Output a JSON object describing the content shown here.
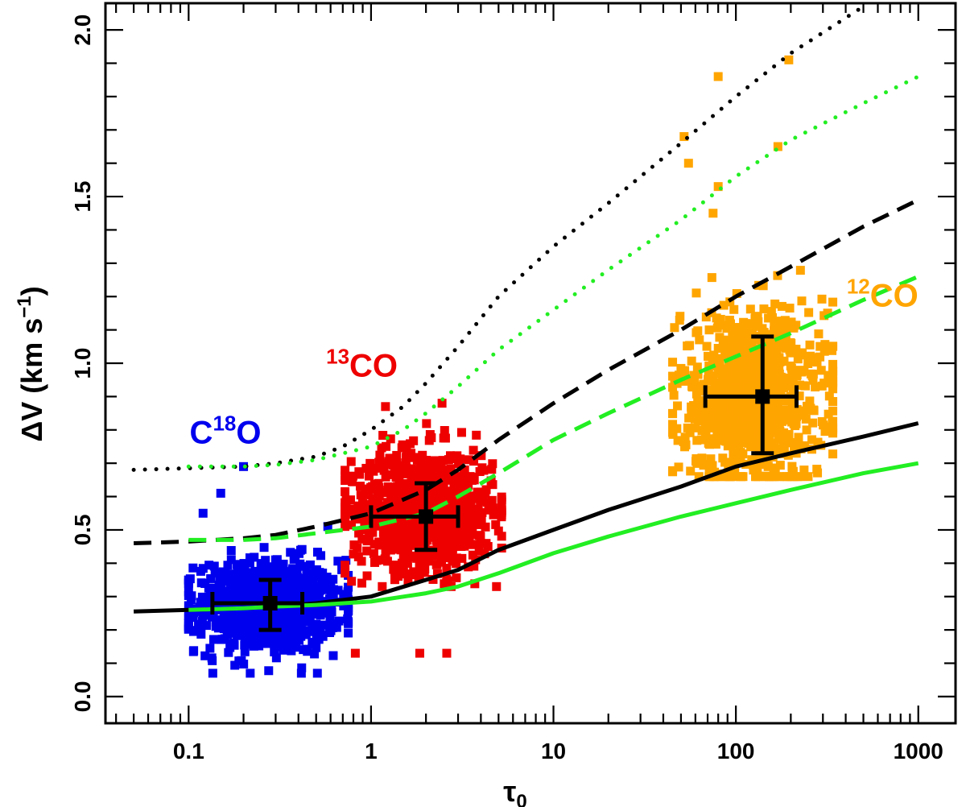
{
  "chart_data": {
    "type": "scatter",
    "title": "",
    "xlabel": "τ₀",
    "xlabel_symbol": "τ",
    "xlabel_sub": "0",
    "ylabel": "ΔV (km s⁻¹)",
    "ylabel_main": "ΔV (km s",
    "ylabel_sup": "−1",
    "ylabel_close": ")",
    "xscale": "log",
    "xlim": [
      0.035,
      1600
    ],
    "ylim": [
      -0.08,
      2.08
    ],
    "xticks": [
      0.1,
      1,
      10,
      100,
      1000
    ],
    "xtick_labels": [
      "0.1",
      "1",
      "10",
      "100",
      "1000"
    ],
    "yticks": [
      0.0,
      0.5,
      1.0,
      1.5,
      2.0
    ],
    "ytick_labels": [
      "0.0",
      "0.5",
      "1.0",
      "1.5",
      "2.0"
    ],
    "colors": {
      "c18o": "#0000ee",
      "13co": "#ee0000",
      "12co": "#ffa500",
      "model_black": "#000000",
      "model_green": "#22ee22"
    },
    "scatter_groups": [
      {
        "name": "C18O",
        "color_key": "c18o",
        "count": 900,
        "x_range": [
          0.1,
          0.75
        ],
        "y_center": 0.27,
        "y_spread": 0.07,
        "y_min": 0.07,
        "y_max": 0.62,
        "outliers": [
          [
            0.2,
            0.69
          ],
          [
            0.15,
            0.61
          ],
          [
            0.12,
            0.55
          ]
        ]
      },
      {
        "name": "13CO",
        "color_key": "13co",
        "count": 900,
        "x_range": [
          0.72,
          5.2
        ],
        "y_center": 0.56,
        "y_spread": 0.09,
        "y_min": 0.33,
        "y_max": 0.86,
        "outliers": [
          [
            0.82,
            0.13
          ],
          [
            1.85,
            0.13
          ],
          [
            2.6,
            0.13
          ],
          [
            2.45,
            0.88
          ],
          [
            1.2,
            0.87
          ]
        ]
      },
      {
        "name": "12CO",
        "color_key": "12co",
        "count": 1000,
        "x_range": [
          45,
          340
        ],
        "y_center": 0.9,
        "y_spread": 0.13,
        "y_min": 0.66,
        "y_max": 1.42,
        "outliers": [
          [
            80,
            1.86
          ],
          [
            195,
            1.91
          ],
          [
            52,
            1.68
          ],
          [
            55,
            1.6
          ],
          [
            170,
            1.65
          ],
          [
            80,
            1.53
          ],
          [
            75,
            1.45
          ]
        ]
      }
    ],
    "group_means": [
      {
        "name": "C18O",
        "x": 0.28,
        "y": 0.28,
        "x_err": [
          0.135,
          0.42
        ],
        "y_err": [
          0.2,
          0.35
        ]
      },
      {
        "name": "13CO",
        "x": 2.0,
        "y": 0.54,
        "x_err": [
          1.0,
          3.0
        ],
        "y_err": [
          0.44,
          0.64
        ]
      },
      {
        "name": "12CO",
        "x": 140,
        "y": 0.9,
        "x_err": [
          68,
          215
        ],
        "y_err": [
          0.73,
          1.08
        ]
      }
    ],
    "series": [
      {
        "name": "black solid",
        "color_key": "model_black",
        "style": "solid",
        "x": [
          0.05,
          0.1,
          0.2,
          0.3,
          0.5,
          1,
          2,
          3,
          5,
          10,
          20,
          50,
          100,
          200,
          500,
          1000
        ],
        "y": [
          0.255,
          0.26,
          0.265,
          0.27,
          0.28,
          0.3,
          0.35,
          0.38,
          0.44,
          0.5,
          0.56,
          0.63,
          0.69,
          0.73,
          0.78,
          0.82
        ]
      },
      {
        "name": "green solid",
        "color_key": "model_green",
        "style": "solid",
        "x": [
          0.1,
          0.2,
          0.3,
          0.5,
          1,
          2,
          3,
          5,
          10,
          20,
          50,
          100,
          200,
          500,
          1000
        ],
        "y": [
          0.26,
          0.265,
          0.27,
          0.275,
          0.285,
          0.31,
          0.33,
          0.37,
          0.43,
          0.48,
          0.54,
          0.58,
          0.62,
          0.67,
          0.7
        ]
      },
      {
        "name": "black dashed",
        "color_key": "model_black",
        "style": "dashed",
        "x": [
          0.05,
          0.1,
          0.2,
          0.3,
          0.5,
          1,
          2,
          3,
          5,
          10,
          20,
          50,
          100,
          200,
          500,
          1000
        ],
        "y": [
          0.46,
          0.465,
          0.475,
          0.485,
          0.51,
          0.55,
          0.62,
          0.68,
          0.77,
          0.88,
          0.98,
          1.1,
          1.2,
          1.29,
          1.41,
          1.49
        ]
      },
      {
        "name": "green dashed",
        "color_key": "model_green",
        "style": "dashed",
        "x": [
          0.1,
          0.2,
          0.3,
          0.5,
          1,
          2,
          3,
          5,
          10,
          20,
          50,
          100,
          200,
          500,
          1000
        ],
        "y": [
          0.47,
          0.47,
          0.475,
          0.49,
          0.51,
          0.55,
          0.6,
          0.67,
          0.77,
          0.85,
          0.95,
          1.02,
          1.09,
          1.19,
          1.26
        ]
      },
      {
        "name": "black dotted",
        "color_key": "model_black",
        "style": "dotted",
        "x": [
          0.05,
          0.1,
          0.2,
          0.3,
          0.5,
          0.7,
          1,
          1.5,
          2,
          3,
          5,
          10,
          20,
          50,
          100,
          200,
          500
        ],
        "y": [
          0.68,
          0.685,
          0.69,
          0.7,
          0.72,
          0.75,
          0.8,
          0.87,
          0.94,
          1.05,
          1.2,
          1.35,
          1.48,
          1.66,
          1.8,
          1.93,
          2.07
        ]
      },
      {
        "name": "green dotted",
        "color_key": "model_green",
        "style": "dotted",
        "x": [
          0.1,
          0.2,
          0.3,
          0.5,
          1,
          1.5,
          2,
          3,
          5,
          10,
          20,
          50,
          100,
          200,
          500,
          1000
        ],
        "y": [
          0.69,
          0.69,
          0.695,
          0.71,
          0.75,
          0.8,
          0.85,
          0.93,
          1.04,
          1.16,
          1.28,
          1.43,
          1.56,
          1.67,
          1.78,
          1.86
        ]
      }
    ],
    "annotations": [
      {
        "name": "c18o-label",
        "color_key": "c18o",
        "x": 0.25,
        "y": 0.76,
        "pre": "C",
        "sup": "18",
        "post": "O"
      },
      {
        "name": "13co-label",
        "color_key": "13co",
        "x": 1.4,
        "y": 0.96,
        "pre": "",
        "sup": "13",
        "post": "CO"
      },
      {
        "name": "12co-label",
        "color_key": "12co",
        "x": 1000,
        "y": 1.17,
        "pre": "",
        "sup": "12",
        "post": "CO"
      }
    ]
  }
}
